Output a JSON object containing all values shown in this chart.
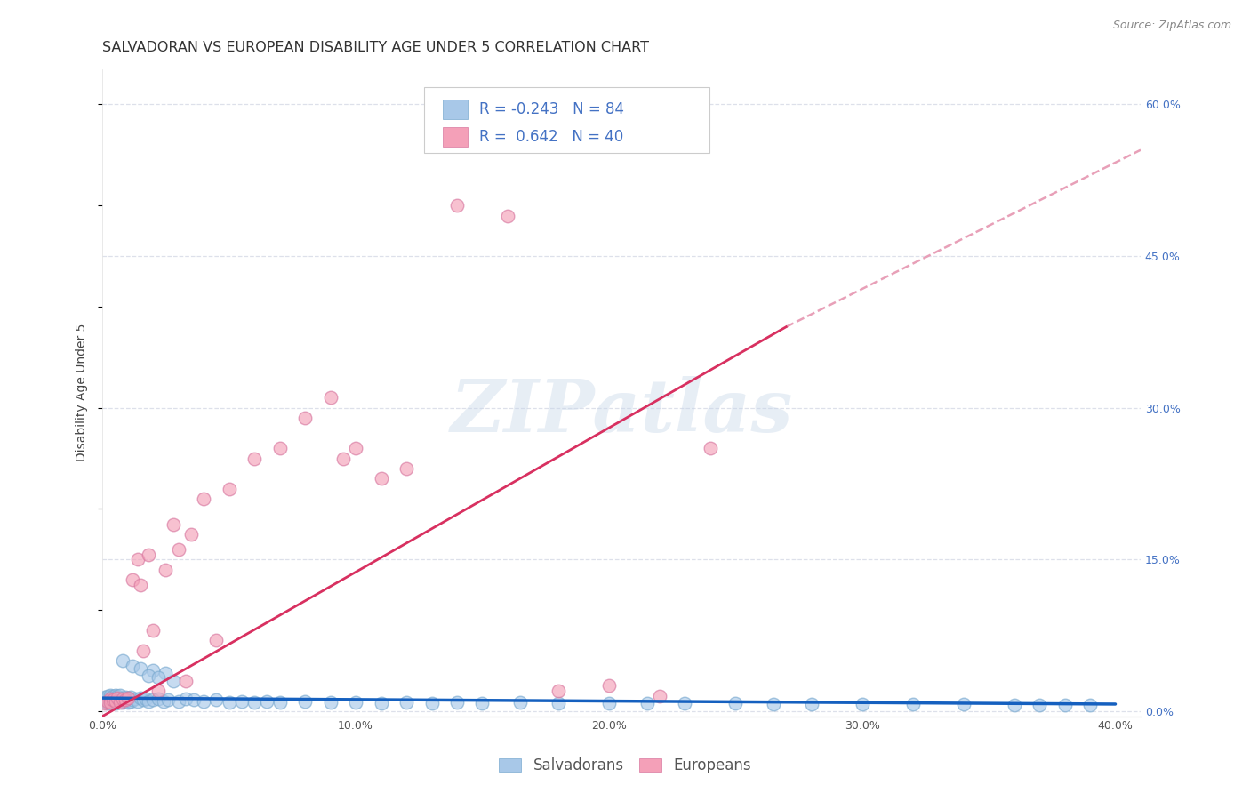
{
  "title": "SALVADORAN VS EUROPEAN DISABILITY AGE UNDER 5 CORRELATION CHART",
  "source": "Source: ZipAtlas.com",
  "ylabel": "Disability Age Under 5",
  "xlim": [
    0.0,
    0.41
  ],
  "ylim": [
    -0.005,
    0.635
  ],
  "xticks": [
    0.0,
    0.1,
    0.2,
    0.3,
    0.4
  ],
  "xticklabels": [
    "0.0%",
    "10.0%",
    "20.0%",
    "30.0%",
    "40.0%"
  ],
  "yticks_right": [
    0.0,
    0.15,
    0.3,
    0.45,
    0.6
  ],
  "salvadoran_color": "#a8c8e8",
  "salvadoran_edge": "#7aaad0",
  "european_color": "#f4a0b8",
  "european_edge": "#d878a0",
  "salvadoran_trend_color": "#1560bf",
  "european_trend_color": "#d83060",
  "european_dashed_color": "#e8a0b8",
  "legend_R_salvadoran": "-0.243",
  "legend_N_salvadoran": "84",
  "legend_R_european": "0.642",
  "legend_N_european": "40",
  "watermark": "ZIPatlas",
  "background_color": "#ffffff",
  "grid_color": "#dde0ea",
  "title_fontsize": 11.5,
  "axis_label_fontsize": 10,
  "tick_fontsize": 9,
  "legend_fontsize": 12,
  "sal_x": [
    0.001,
    0.001,
    0.001,
    0.002,
    0.002,
    0.002,
    0.002,
    0.003,
    0.003,
    0.003,
    0.003,
    0.004,
    0.004,
    0.004,
    0.005,
    0.005,
    0.005,
    0.005,
    0.006,
    0.006,
    0.006,
    0.007,
    0.007,
    0.007,
    0.008,
    0.008,
    0.009,
    0.009,
    0.01,
    0.01,
    0.011,
    0.011,
    0.012,
    0.013,
    0.014,
    0.015,
    0.016,
    0.017,
    0.018,
    0.02,
    0.022,
    0.024,
    0.026,
    0.03,
    0.033,
    0.036,
    0.04,
    0.045,
    0.05,
    0.055,
    0.06,
    0.065,
    0.07,
    0.08,
    0.09,
    0.1,
    0.11,
    0.12,
    0.13,
    0.14,
    0.15,
    0.165,
    0.18,
    0.2,
    0.215,
    0.23,
    0.25,
    0.265,
    0.28,
    0.3,
    0.32,
    0.34,
    0.36,
    0.37,
    0.38,
    0.39,
    0.02,
    0.025,
    0.008,
    0.012,
    0.015,
    0.018,
    0.022,
    0.028
  ],
  "sal_y": [
    0.01,
    0.012,
    0.014,
    0.008,
    0.011,
    0.013,
    0.015,
    0.009,
    0.012,
    0.014,
    0.016,
    0.01,
    0.013,
    0.015,
    0.008,
    0.011,
    0.014,
    0.016,
    0.009,
    0.012,
    0.015,
    0.01,
    0.013,
    0.016,
    0.009,
    0.012,
    0.01,
    0.014,
    0.009,
    0.013,
    0.01,
    0.014,
    0.011,
    0.012,
    0.01,
    0.013,
    0.011,
    0.012,
    0.01,
    0.011,
    0.012,
    0.01,
    0.011,
    0.01,
    0.012,
    0.011,
    0.01,
    0.011,
    0.009,
    0.01,
    0.009,
    0.01,
    0.009,
    0.01,
    0.009,
    0.009,
    0.008,
    0.009,
    0.008,
    0.009,
    0.008,
    0.009,
    0.008,
    0.008,
    0.008,
    0.008,
    0.008,
    0.007,
    0.007,
    0.007,
    0.007,
    0.007,
    0.006,
    0.006,
    0.006,
    0.006,
    0.04,
    0.038,
    0.05,
    0.045,
    0.042,
    0.035,
    0.033,
    0.03
  ],
  "eur_x": [
    0.001,
    0.002,
    0.003,
    0.003,
    0.004,
    0.005,
    0.006,
    0.007,
    0.008,
    0.009,
    0.01,
    0.012,
    0.014,
    0.016,
    0.02,
    0.025,
    0.03,
    0.035,
    0.04,
    0.05,
    0.06,
    0.07,
    0.08,
    0.09,
    0.095,
    0.1,
    0.11,
    0.12,
    0.14,
    0.16,
    0.18,
    0.2,
    0.22,
    0.24,
    0.015,
    0.018,
    0.022,
    0.028,
    0.033,
    0.045
  ],
  "eur_y": [
    0.008,
    0.01,
    0.012,
    0.009,
    0.011,
    0.01,
    0.013,
    0.009,
    0.012,
    0.011,
    0.013,
    0.13,
    0.15,
    0.06,
    0.08,
    0.14,
    0.16,
    0.175,
    0.21,
    0.22,
    0.25,
    0.26,
    0.29,
    0.31,
    0.25,
    0.26,
    0.23,
    0.24,
    0.5,
    0.49,
    0.02,
    0.025,
    0.015,
    0.26,
    0.125,
    0.155,
    0.02,
    0.185,
    0.03,
    0.07
  ]
}
